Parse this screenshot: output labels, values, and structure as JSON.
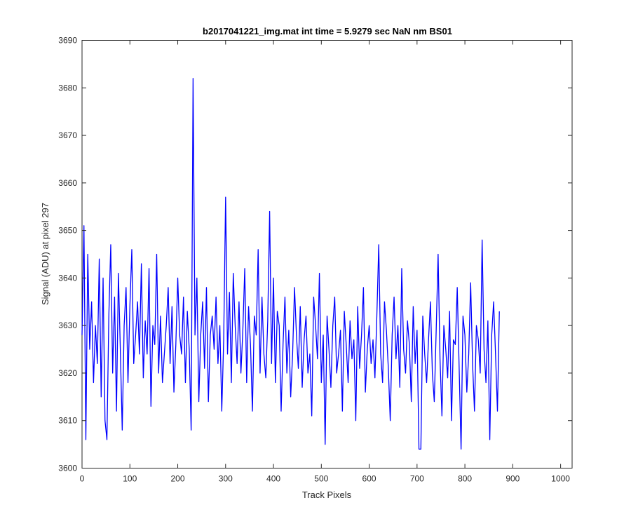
{
  "chart_data": {
    "type": "line",
    "title": "b2017041221_img.mat int time = 5.9279 sec  NaN nm BS01",
    "xlabel": "Track Pixels",
    "ylabel": "Signal (ADU) at pixel 297",
    "xlim": [
      0,
      1024
    ],
    "ylim": [
      3600,
      3690
    ],
    "xticks": [
      0,
      100,
      200,
      300,
      400,
      500,
      600,
      700,
      800,
      900,
      1000
    ],
    "yticks": [
      3600,
      3610,
      3620,
      3630,
      3640,
      3650,
      3660,
      3670,
      3680,
      3690
    ],
    "grid": false,
    "legend": "none",
    "series": [
      {
        "color": "#0000ff",
        "x_start": 0,
        "x_step": 4,
        "values": [
          3628,
          3651,
          3606,
          3645,
          3625,
          3635,
          3618,
          3630,
          3622,
          3644,
          3615,
          3640,
          3610,
          3606,
          3632,
          3647,
          3620,
          3636,
          3612,
          3641,
          3625,
          3608,
          3630,
          3638,
          3618,
          3634,
          3646,
          3622,
          3628,
          3635,
          3624,
          3643,
          3619,
          3631,
          3624,
          3642,
          3613,
          3630,
          3626,
          3645,
          3620,
          3632,
          3618,
          3624,
          3630,
          3638,
          3622,
          3634,
          3616,
          3626,
          3640,
          3628,
          3624,
          3636,
          3618,
          3633,
          3625,
          3608,
          3682,
          3628,
          3640,
          3614,
          3628,
          3635,
          3621,
          3638,
          3614,
          3628,
          3632,
          3625,
          3636,
          3622,
          3630,
          3612,
          3627,
          3657,
          3624,
          3637,
          3618,
          3641,
          3630,
          3622,
          3635,
          3620,
          3629,
          3642,
          3618,
          3634,
          3626,
          3612,
          3632,
          3628,
          3646,
          3620,
          3636,
          3624,
          3619,
          3631,
          3654,
          3622,
          3640,
          3618,
          3633,
          3630,
          3612,
          3626,
          3636,
          3620,
          3629,
          3615,
          3624,
          3638,
          3628,
          3621,
          3634,
          3617,
          3627,
          3632,
          3620,
          3624,
          3611,
          3636,
          3630,
          3623,
          3641,
          3618,
          3628,
          3605,
          3632,
          3625,
          3617,
          3630,
          3636,
          3620,
          3624,
          3629,
          3612,
          3633,
          3626,
          3618,
          3631,
          3623,
          3627,
          3610,
          3634,
          3621,
          3628,
          3638,
          3616,
          3625,
          3630,
          3622,
          3627,
          3619,
          3632,
          3647,
          3624,
          3618,
          3635,
          3629,
          3621,
          3610,
          3628,
          3636,
          3623,
          3630,
          3617,
          3642,
          3625,
          3620,
          3631,
          3626,
          3614,
          3634,
          3622,
          3629,
          3604,
          3604,
          3632,
          3624,
          3618,
          3627,
          3635,
          3620,
          3614,
          3629,
          3645,
          3623,
          3611,
          3630,
          3625,
          3619,
          3633,
          3610,
          3627,
          3626,
          3638,
          3621,
          3604,
          3632,
          3628,
          3616,
          3624,
          3639,
          3622,
          3612,
          3630,
          3627,
          3620,
          3648,
          3625,
          3618,
          3631,
          3606,
          3628,
          3635,
          3624,
          3612,
          3633
        ]
      }
    ]
  }
}
